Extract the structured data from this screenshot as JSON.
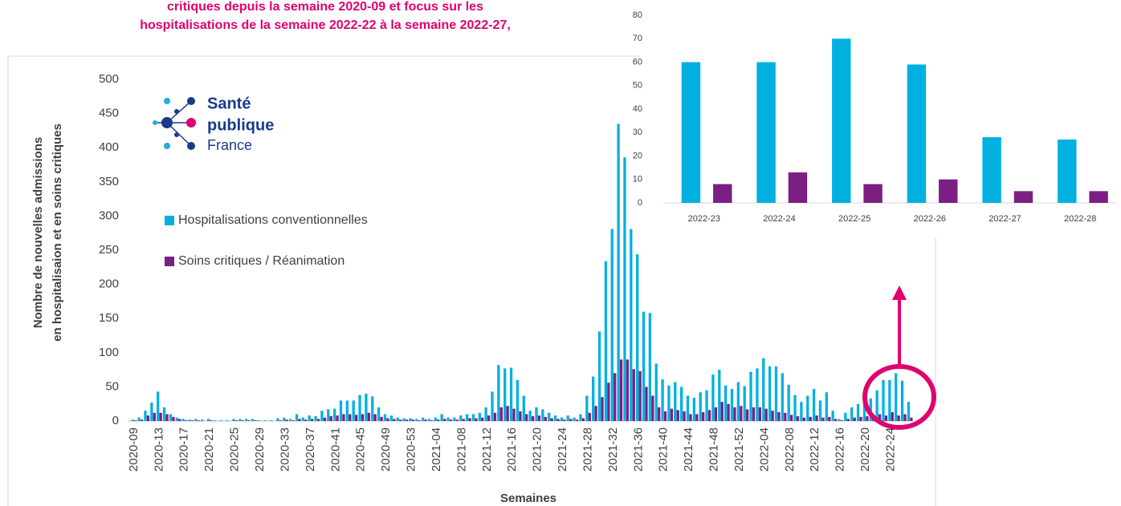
{
  "chart_data": [
    {
      "type": "bar",
      "title_lines": [
        "critiques depuis la semaine 2020-09 et focus sur les",
        "hospitalisations de la semaine 2022-22 à la semaine 2022-27,"
      ],
      "ylabel_lines": [
        "Nombre de nouvelles admissions",
        "en hospitalisaion et en soins critiques"
      ],
      "xlabel": "Semaines",
      "categories": [
        "2020-09",
        null,
        null,
        null,
        "2020-13",
        null,
        null,
        null,
        "2020-17",
        null,
        null,
        null,
        "2020-21",
        null,
        null,
        null,
        "2020-25",
        null,
        null,
        null,
        "2020-29",
        null,
        null,
        null,
        "2020-33",
        null,
        null,
        null,
        "2020-37",
        null,
        null,
        null,
        "2020-41",
        null,
        null,
        null,
        "2020-45",
        null,
        null,
        null,
        "2020-49",
        null,
        null,
        null,
        "2020-53",
        null,
        null,
        null,
        "2021-04",
        null,
        null,
        null,
        "2021-08",
        null,
        null,
        null,
        "2021-12",
        null,
        null,
        null,
        "2021-16",
        null,
        null,
        null,
        "2021-20",
        null,
        null,
        null,
        "2021-24",
        null,
        null,
        null,
        "2021-28",
        null,
        null,
        null,
        "2021-32",
        null,
        null,
        null,
        "2021-36",
        null,
        null,
        null,
        "2021-40",
        null,
        null,
        null,
        "2021-44",
        null,
        null,
        null,
        "2021-48",
        null,
        null,
        null,
        "2021-52",
        null,
        null,
        null,
        "2022-04",
        null,
        null,
        null,
        "2022-08",
        null,
        null,
        null,
        "2022-12",
        null,
        null,
        null,
        "2022-16",
        null,
        null,
        null,
        "2022-20",
        null,
        null,
        null,
        "2022-24",
        null,
        null,
        null
      ],
      "series": [
        {
          "name": "Hospitalisations conventionnelles",
          "color": "#00b0e0",
          "values": [
            2,
            5,
            15,
            27,
            43,
            20,
            10,
            5,
            3,
            2,
            3,
            2,
            3,
            1,
            1,
            1,
            3,
            3,
            3,
            3,
            1,
            1,
            1,
            4,
            5,
            3,
            10,
            5,
            8,
            7,
            15,
            17,
            18,
            30,
            30,
            30,
            38,
            40,
            36,
            20,
            10,
            8,
            5,
            4,
            4,
            3,
            5,
            3,
            5,
            10,
            5,
            5,
            8,
            10,
            10,
            12,
            20,
            43,
            82,
            77,
            78,
            60,
            37,
            15,
            20,
            17,
            12,
            8,
            5,
            8,
            5,
            10,
            37,
            65,
            131,
            234,
            281,
            435,
            386,
            281,
            244,
            160,
            158,
            84,
            61,
            52,
            57,
            50,
            37,
            34,
            42,
            45,
            68,
            75,
            52,
            47,
            57,
            51,
            72,
            77,
            92,
            80,
            80,
            70,
            53,
            38,
            28,
            37,
            47,
            30,
            42,
            15,
            3,
            12,
            20,
            25,
            30,
            33,
            45,
            60,
            60,
            70,
            59,
            28
          ]
        },
        {
          "name": "Soins critiques / Réanimation",
          "color": "#7b1f82",
          "values": [
            1,
            2,
            8,
            12,
            12,
            10,
            6,
            3,
            1,
            1,
            1,
            0,
            1,
            0,
            0,
            0,
            1,
            1,
            1,
            1,
            0,
            0,
            0,
            1,
            2,
            1,
            3,
            2,
            3,
            3,
            5,
            7,
            8,
            10,
            10,
            9,
            10,
            12,
            10,
            6,
            4,
            3,
            2,
            2,
            2,
            1,
            2,
            1,
            2,
            3,
            2,
            2,
            3,
            4,
            4,
            5,
            8,
            12,
            20,
            22,
            18,
            14,
            10,
            7,
            8,
            6,
            4,
            3,
            2,
            3,
            2,
            4,
            12,
            22,
            35,
            56,
            70,
            90,
            90,
            76,
            73,
            50,
            37,
            20,
            14,
            18,
            16,
            14,
            10,
            10,
            13,
            16,
            20,
            28,
            25,
            20,
            22,
            17,
            20,
            20,
            18,
            15,
            13,
            12,
            9,
            7,
            5,
            6,
            8,
            5,
            6,
            3,
            1,
            3,
            5,
            6,
            7,
            8,
            10,
            8,
            13,
            8,
            10,
            5
          ]
        }
      ],
      "ylim": [
        0,
        500
      ],
      "yticks": [
        0,
        50,
        100,
        150,
        200,
        250,
        300,
        350,
        400,
        450,
        500
      ]
    },
    {
      "type": "bar",
      "categories": [
        "2022-23",
        "2022-24",
        "2022-25",
        "2022-26",
        "2022-27",
        "2022-28"
      ],
      "series": [
        {
          "color": "#00b0e0",
          "values": [
            60,
            60,
            70,
            59,
            28,
            27
          ]
        },
        {
          "color": "#7b1f82",
          "values": [
            8,
            13,
            8,
            10,
            5,
            5
          ]
        }
      ],
      "ylim": [
        0,
        80
      ],
      "yticks": [
        0,
        10,
        20,
        30,
        40,
        50,
        60,
        70,
        80
      ]
    }
  ],
  "logo": {
    "line1": "Santé",
    "line2": "publique",
    "line3": "France"
  }
}
